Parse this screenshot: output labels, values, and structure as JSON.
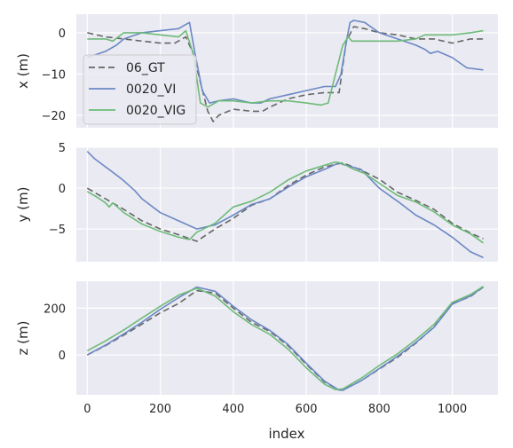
{
  "colors": {
    "panel_bg": "#EAEAF2",
    "grid": "#FFFFFF",
    "text": "#262626"
  },
  "chart_data": {
    "type": "line",
    "xlabel": "index",
    "xlim": [
      -30,
      1125
    ],
    "xticks": [
      0,
      200,
      400,
      600,
      800,
      1000
    ],
    "xtick_labels": [
      "0",
      "200",
      "400",
      "600",
      "800",
      "1000"
    ],
    "legend": {
      "placement": "lower-left of top panel",
      "entries": [
        "06_GT",
        "0020_VI",
        "0020_VIG"
      ]
    },
    "series_styles": [
      {
        "name": "06_GT",
        "color": "#666666",
        "dash": "7,4"
      },
      {
        "name": "0020_VI",
        "color": "#6B88C4",
        "dash": ""
      },
      {
        "name": "0020_VIG",
        "color": "#6DBB78",
        "dash": ""
      }
    ],
    "panels": [
      {
        "ylabel": "x (m)",
        "ylim": [
          -23,
          4.5
        ],
        "yticks": [
          0,
          -10,
          -20
        ],
        "ytick_labels": [
          "0",
          "−10",
          "−20"
        ],
        "series": [
          {
            "name": "06_GT",
            "x": [
              0,
              50,
              100,
              150,
              200,
              240,
              270,
              290,
              310,
              330,
              345,
              360,
              400,
              450,
              480,
              500,
              550,
              600,
              650,
              690,
              700,
              710,
              730,
              760,
              800,
              850,
              900,
              950,
              1000,
              1050,
              1085
            ],
            "y": [
              0,
              -1,
              -1.5,
              -2,
              -2.5,
              -2.5,
              -1,
              -5,
              -12,
              -19,
              -21.5,
              -20,
              -18.5,
              -19,
              -19,
              -18,
              -16,
              -15,
              -14.5,
              -14.5,
              -8,
              -2,
              1.5,
              1,
              0,
              -0.5,
              -1.5,
              -1.5,
              -2.5,
              -1.5,
              -1.5
            ]
          },
          {
            "name": "0020_VI",
            "x": [
              0,
              50,
              80,
              100,
              150,
              200,
              250,
              270,
              280,
              295,
              315,
              335,
              360,
              400,
              450,
              475,
              500,
              550,
              600,
              650,
              680,
              695,
              710,
              720,
              730,
              760,
              800,
              850,
              900,
              925,
              940,
              960,
              1000,
              1040,
              1085
            ],
            "y": [
              -6,
              -4.5,
              -3,
              -1.5,
              0,
              0.5,
              1,
              2,
              2.5,
              -5,
              -14,
              -17,
              -16.5,
              -16,
              -17,
              -17,
              -16,
              -15,
              -14,
              -13,
              -13,
              -10,
              -2,
              2.5,
              3,
              2.5,
              0,
              -1.5,
              -3,
              -4,
              -5,
              -4.5,
              -6,
              -8.5,
              -9
            ]
          },
          {
            "name": "0020_VIG",
            "x": [
              0,
              50,
              70,
              100,
              150,
              200,
              250,
              270,
              290,
              310,
              330,
              360,
              400,
              450,
              500,
              550,
              600,
              640,
              660,
              680,
              700,
              715,
              725,
              740,
              800,
              850,
              900,
              925,
              950,
              1000,
              1050,
              1085
            ],
            "y": [
              -1.5,
              -1.5,
              -2,
              0,
              0,
              -0.5,
              -1,
              0.5,
              -5,
              -17,
              -18,
              -16.5,
              -16.5,
              -17,
              -16.5,
              -16.5,
              -17,
              -17.5,
              -17,
              -10,
              -3,
              -1,
              -2,
              -2,
              -2,
              -2,
              -1.5,
              -0.5,
              -0.5,
              -0.5,
              0,
              0.5
            ]
          }
        ]
      },
      {
        "ylabel": "y (m)",
        "ylim": [
          -9,
          5
        ],
        "yticks": [
          5,
          0,
          -5
        ],
        "ytick_labels": [
          "5",
          "0",
          "−5"
        ],
        "series": [
          {
            "name": "06_GT",
            "x": [
              0,
              50,
              100,
              150,
              200,
              250,
              300,
              350,
              400,
              450,
              500,
              550,
              600,
              650,
              700,
              750,
              800,
              850,
              900,
              950,
              1000,
              1050,
              1085
            ],
            "y": [
              0,
              -1.3,
              -2.6,
              -4,
              -5,
              -5.7,
              -6.5,
              -5,
              -3.7,
              -2.1,
              -1.3,
              0.3,
              1.6,
              2.6,
              3.1,
              2.2,
              1.1,
              -0.5,
              -1.5,
              -2.6,
              -4.3,
              -5.5,
              -6.2
            ]
          },
          {
            "name": "0020_VI",
            "x": [
              0,
              20,
              50,
              80,
              100,
              130,
              150,
              200,
              250,
              300,
              350,
              400,
              450,
              500,
              550,
              600,
              650,
              690,
              700,
              750,
              800,
              850,
              900,
              950,
              1000,
              1050,
              1085
            ],
            "y": [
              4.5,
              3.6,
              2.6,
              1.6,
              0.9,
              -0.3,
              -1.3,
              -3,
              -4,
              -5,
              -4.5,
              -3.3,
              -2,
              -1.3,
              0.1,
              1.4,
              2.3,
              3.1,
              2.9,
              2.3,
              0,
              -1.6,
              -3.3,
              -4.5,
              -6,
              -7.8,
              -8.5
            ]
          },
          {
            "name": "0020_VIG",
            "x": [
              0,
              30,
              50,
              60,
              70,
              100,
              150,
              200,
              250,
              280,
              300,
              350,
              400,
              450,
              500,
              550,
              600,
              650,
              680,
              700,
              730,
              760,
              800,
              850,
              900,
              950,
              1000,
              1050,
              1085
            ],
            "y": [
              -0.4,
              -1.2,
              -1.8,
              -2.3,
              -1.8,
              -3,
              -4.4,
              -5.3,
              -6,
              -6.3,
              -5.4,
              -4.3,
              -2.3,
              -1.6,
              -0.5,
              1,
              2.1,
              2.8,
              3.2,
              3,
              2.3,
              1.8,
              0.6,
              -0.9,
              -1.7,
              -2.9,
              -4.5,
              -5.6,
              -6.7
            ]
          }
        ]
      },
      {
        "ylabel": "z (m)",
        "ylim": [
          -170,
          315
        ],
        "yticks": [
          200,
          0
        ],
        "ytick_labels": [
          "200",
          "0"
        ],
        "series": [
          {
            "name": "06_GT",
            "x": [
              0,
              50,
              100,
              150,
              200,
              250,
              300,
              350,
              400,
              450,
              500,
              550,
              600,
              650,
              690,
              700,
              750,
              800,
              850,
              900,
              950,
              1000,
              1050,
              1085
            ],
            "y": [
              0,
              40,
              85,
              132,
              180,
              220,
              275,
              265,
              200,
              140,
              100,
              40,
              -40,
              -115,
              -150,
              -150,
              -110,
              -60,
              -10,
              50,
              120,
              220,
              250,
              290
            ]
          },
          {
            "name": "0020_VI",
            "x": [
              0,
              50,
              100,
              150,
              200,
              250,
              300,
              350,
              400,
              450,
              500,
              550,
              600,
              650,
              690,
              700,
              750,
              800,
              850,
              900,
              950,
              1000,
              1050,
              1085
            ],
            "y": [
              0,
              42,
              90,
              140,
              195,
              245,
              290,
              272,
              208,
              150,
              105,
              45,
              -35,
              -112,
              -150,
              -151,
              -110,
              -58,
              -5,
              53,
              118,
              217,
              252,
              291
            ]
          },
          {
            "name": "0020_VIG",
            "x": [
              0,
              50,
              100,
              150,
              200,
              250,
              300,
              350,
              400,
              450,
              500,
              550,
              600,
              650,
              680,
              700,
              750,
              800,
              850,
              900,
              950,
              1000,
              1050,
              1085
            ],
            "y": [
              18,
              60,
              107,
              158,
              208,
              255,
              285,
              252,
              185,
              130,
              88,
              25,
              -55,
              -125,
              -148,
              -145,
              -100,
              -45,
              5,
              65,
              130,
              225,
              258,
              293
            ]
          }
        ]
      }
    ]
  }
}
